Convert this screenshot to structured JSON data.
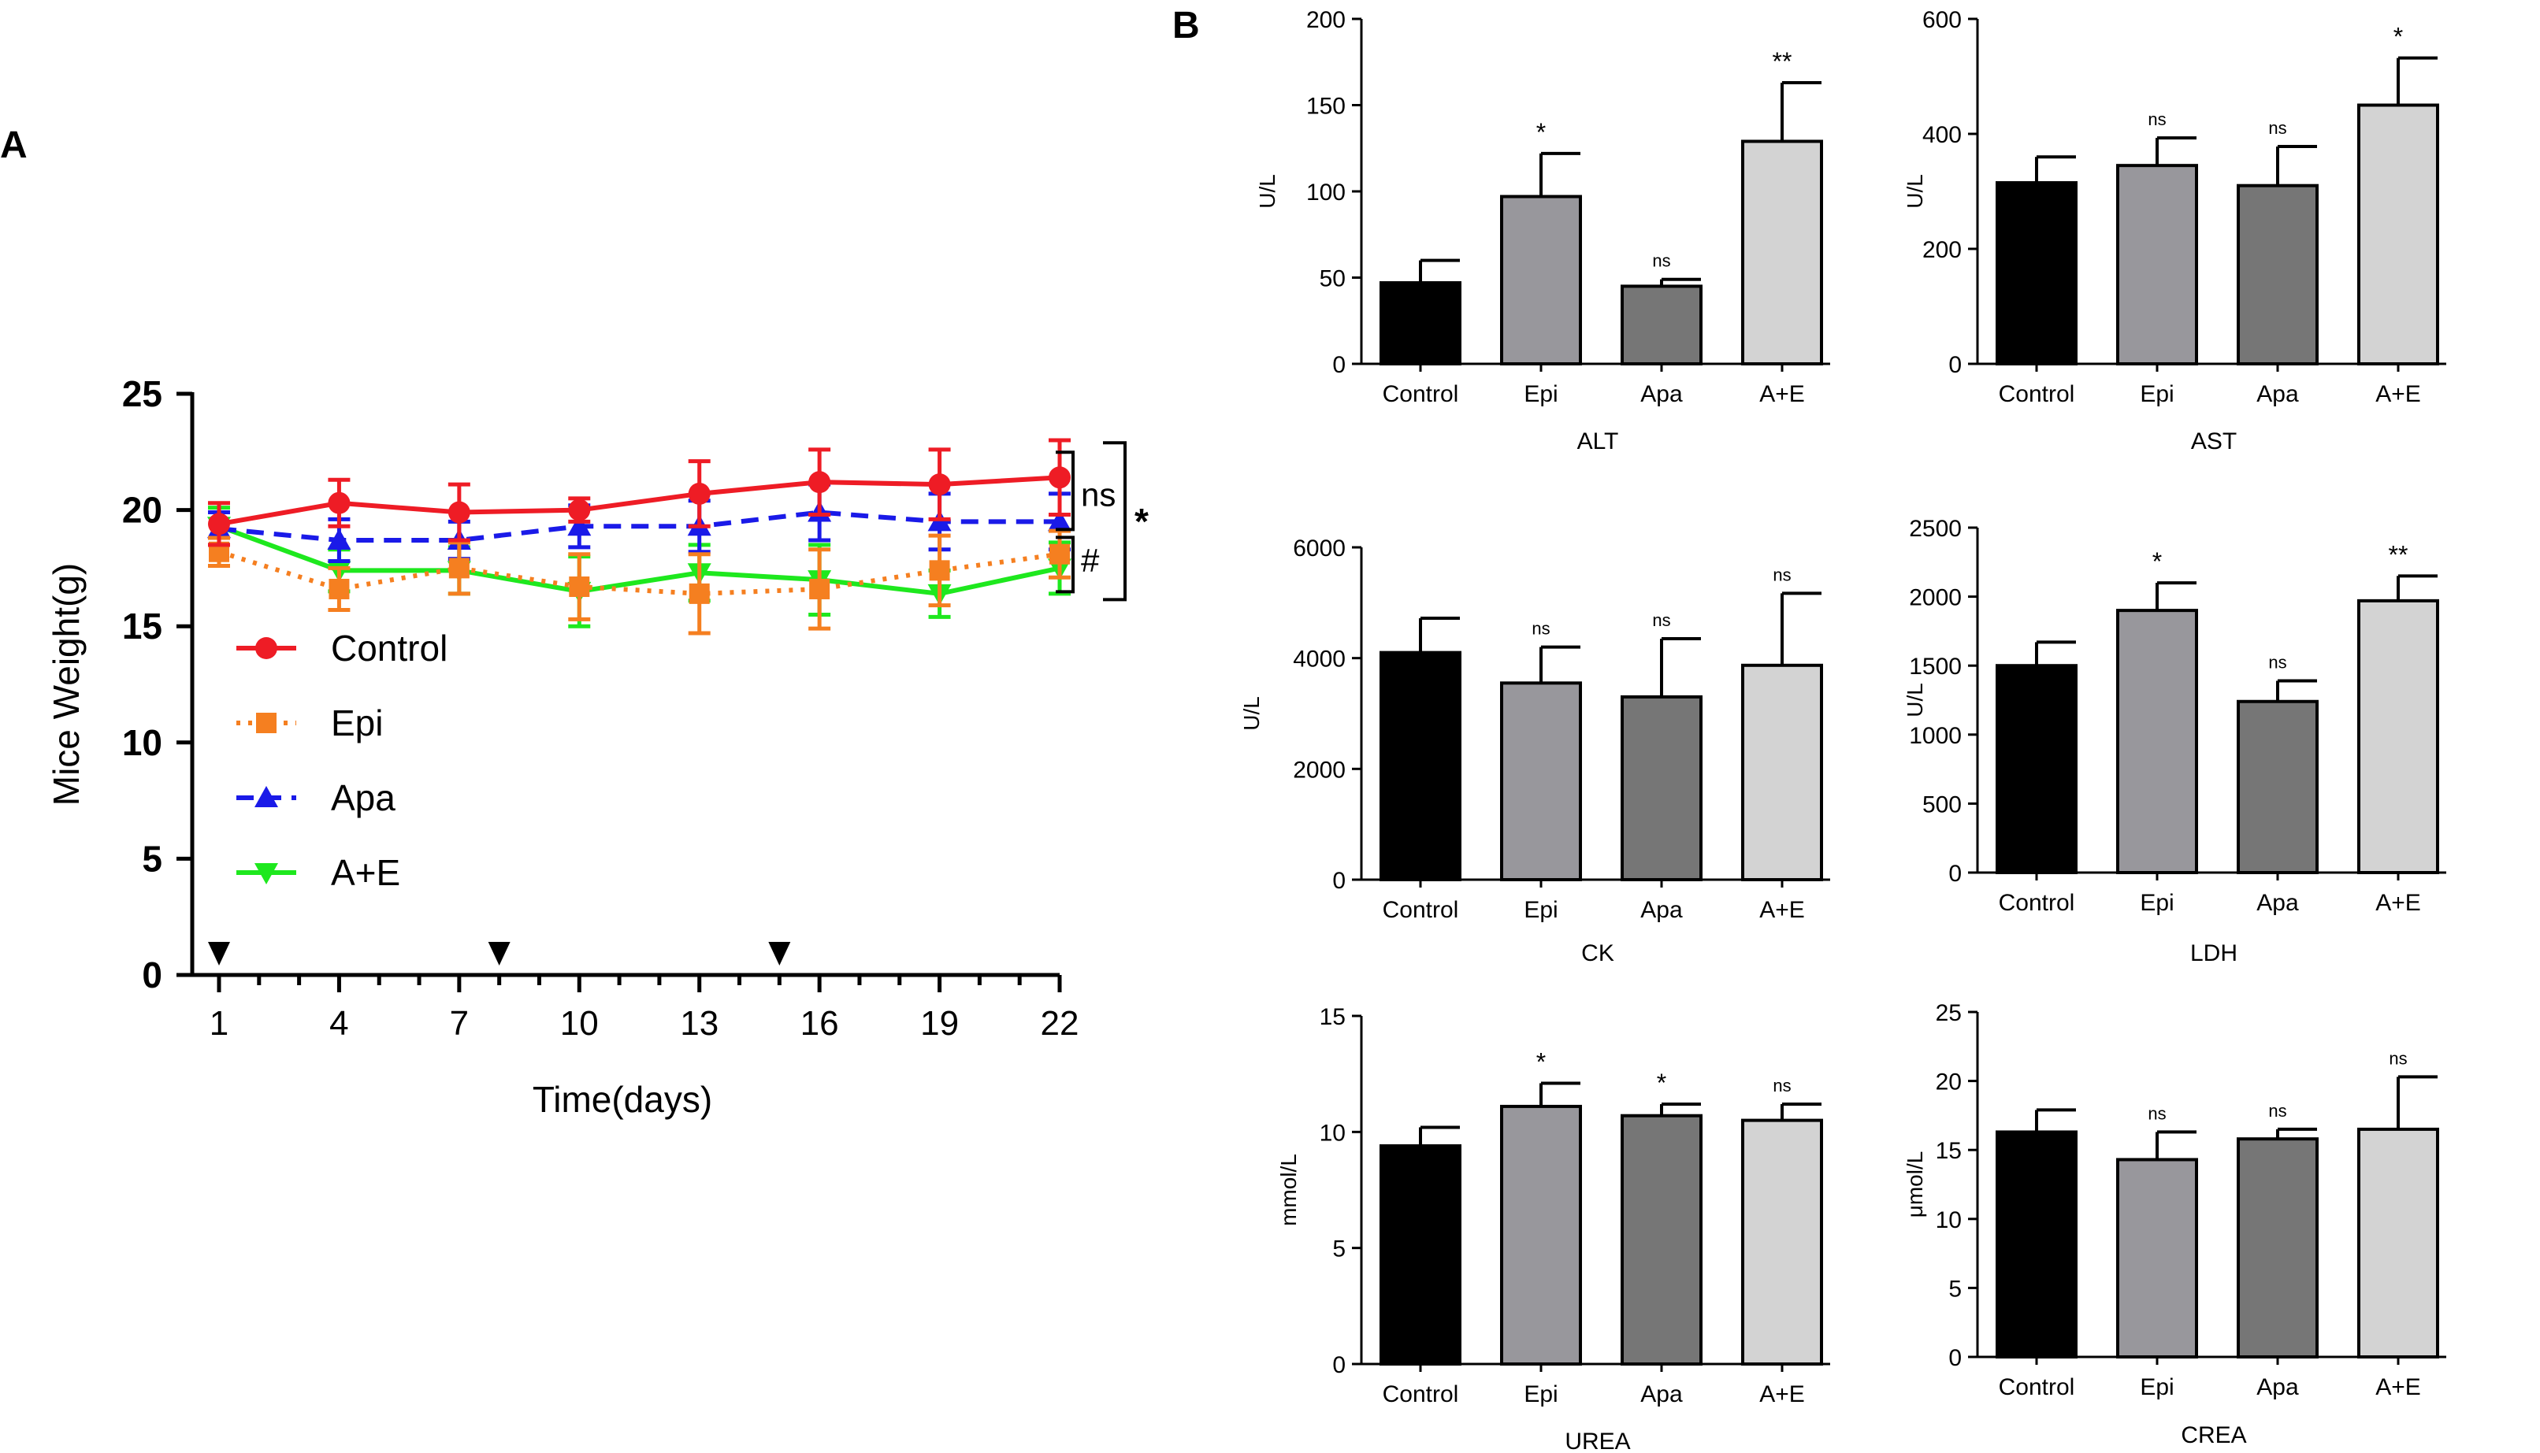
{
  "panel_labels": {
    "a": "A",
    "b": "B"
  },
  "chart_data": [
    {
      "id": "weight",
      "type": "line",
      "ylabel": "Mice Weight(g)",
      "xlabel": "Time(days)",
      "x": [
        1,
        4,
        7,
        10,
        13,
        16,
        19,
        22
      ],
      "xlim": [
        1,
        22
      ],
      "ylim": [
        0,
        25
      ],
      "yticks": [
        0,
        5,
        10,
        15,
        20,
        25
      ],
      "grid": false,
      "legend": "left-middle",
      "series": [
        {
          "name": "Control",
          "color": "#ee1c25",
          "style": "solid",
          "marker": "circle",
          "values": [
            19.4,
            20.3,
            19.9,
            20.0,
            20.7,
            21.2,
            21.1,
            21.4
          ],
          "errors": [
            0.9,
            1.0,
            1.2,
            0.5,
            1.4,
            1.4,
            1.5,
            1.6
          ]
        },
        {
          "name": "Epi",
          "color": "#f57f20",
          "style": "dotted",
          "marker": "square",
          "values": [
            18.2,
            16.6,
            17.5,
            16.7,
            16.4,
            16.6,
            17.4,
            18.1
          ],
          "errors": [
            0.6,
            0.9,
            1.1,
            1.4,
            1.7,
            1.7,
            1.5,
            1.0
          ]
        },
        {
          "name": "Apa",
          "color": "#1a1ae8",
          "style": "dashed",
          "marker": "triangle-up",
          "values": [
            19.2,
            18.7,
            18.7,
            19.3,
            19.3,
            19.9,
            19.5,
            19.5
          ],
          "errors": [
            0.7,
            0.9,
            0.8,
            0.9,
            1.1,
            1.2,
            1.2,
            1.2
          ]
        },
        {
          "name": "A+E",
          "color": "#1ee81e",
          "style": "solid",
          "marker": "triangle-down",
          "values": [
            19.3,
            17.4,
            17.4,
            16.5,
            17.3,
            17.0,
            16.4,
            17.5
          ],
          "errors": [
            0.8,
            0.9,
            1.0,
            1.5,
            1.2,
            1.5,
            1.0,
            1.1
          ]
        }
      ],
      "treatment_days": [
        1,
        8,
        15
      ],
      "annotations": [
        {
          "text": "ns",
          "between": [
            "Control",
            "Apa"
          ]
        },
        {
          "text": "#",
          "between": [
            "Apa",
            "A+E"
          ]
        },
        {
          "text": "*",
          "between": [
            "Control",
            "A+E"
          ]
        }
      ]
    },
    {
      "id": "alt",
      "type": "bar",
      "title": "ALT",
      "ylabel": "U/L",
      "categories": [
        "Control",
        "Epi",
        "Apa",
        "A+E"
      ],
      "values": [
        47,
        97,
        45,
        129
      ],
      "errors": [
        13,
        25,
        4,
        34
      ],
      "significance": [
        "",
        "*",
        "ns",
        "**"
      ],
      "ylim": [
        0,
        200
      ],
      "yticks": [
        0,
        50,
        100,
        150,
        200
      ]
    },
    {
      "id": "ast",
      "type": "bar",
      "title": "AST",
      "ylabel": "U/L",
      "categories": [
        "Control",
        "Epi",
        "Apa",
        "A+E"
      ],
      "values": [
        315,
        345,
        310,
        450
      ],
      "errors": [
        45,
        48,
        68,
        82
      ],
      "significance": [
        "",
        "ns",
        "ns",
        "*"
      ],
      "ylim": [
        0,
        600
      ],
      "yticks": [
        0,
        200,
        400,
        600
      ]
    },
    {
      "id": "ck",
      "type": "bar",
      "title": "CK",
      "ylabel": "U/L",
      "categories": [
        "Control",
        "Epi",
        "Apa",
        "A+E"
      ],
      "values": [
        4100,
        3550,
        3300,
        3870
      ],
      "errors": [
        620,
        650,
        1050,
        1300
      ],
      "significance": [
        "",
        "ns",
        "ns",
        "ns"
      ],
      "ylim": [
        0,
        6000
      ],
      "yticks": [
        0,
        2000,
        4000,
        6000
      ]
    },
    {
      "id": "ldh",
      "type": "bar",
      "title": "LDH",
      "ylabel": "U/L",
      "categories": [
        "Control",
        "Epi",
        "Apa",
        "A+E"
      ],
      "values": [
        1500,
        1900,
        1240,
        1970
      ],
      "errors": [
        170,
        200,
        150,
        180
      ],
      "significance": [
        "",
        "*",
        "ns",
        "**"
      ],
      "ylim": [
        0,
        2500
      ],
      "yticks": [
        0,
        500,
        1000,
        1500,
        2000,
        2500
      ]
    },
    {
      "id": "urea",
      "type": "bar",
      "title": "UREA",
      "ylabel": "mmol/L",
      "categories": [
        "Control",
        "Epi",
        "Apa",
        "A+E"
      ],
      "values": [
        9.4,
        11.1,
        10.7,
        10.5
      ],
      "errors": [
        0.8,
        1.0,
        0.5,
        0.7
      ],
      "significance": [
        "",
        "*",
        "*",
        "ns"
      ],
      "ylim": [
        0,
        15
      ],
      "yticks": [
        0,
        5,
        10,
        15
      ]
    },
    {
      "id": "crea",
      "type": "bar",
      "title": "CREA",
      "ylabel": "μmol/L",
      "categories": [
        "Control",
        "Epi",
        "Apa",
        "A+E"
      ],
      "values": [
        16.3,
        14.3,
        15.8,
        16.5
      ],
      "errors": [
        1.6,
        2.0,
        0.7,
        3.8
      ],
      "significance": [
        "",
        "ns",
        "ns",
        "ns"
      ],
      "ylim": [
        0,
        25
      ],
      "yticks": [
        0,
        5,
        10,
        15,
        20,
        25
      ]
    }
  ]
}
